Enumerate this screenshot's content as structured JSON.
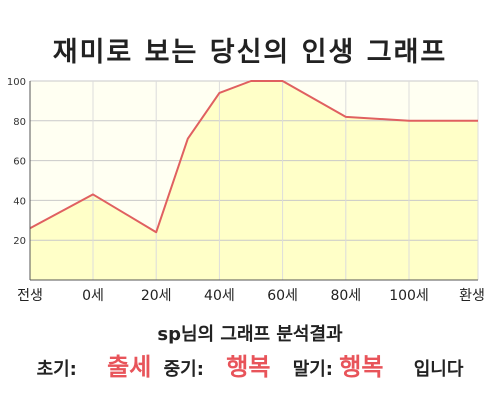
{
  "title": "재미로 보는 당신의 인생 그래프",
  "chart_data": {
    "type": "area",
    "categories": [
      "전생",
      "0세",
      "20세",
      "40세",
      "60세",
      "80세",
      "100세",
      "환생"
    ],
    "y_ticks": [
      20,
      40,
      60,
      80,
      100
    ],
    "ylim": [
      0,
      100
    ],
    "points": [
      {
        "x": "전생",
        "y": 26
      },
      {
        "x": "0세",
        "y": 43
      },
      {
        "x": "20세",
        "y": 24
      },
      {
        "x": "30세",
        "y": 71
      },
      {
        "x": "40세",
        "y": 94
      },
      {
        "x": "50세",
        "y": 100
      },
      {
        "x": "60세",
        "y": 100
      },
      {
        "x": "80세",
        "y": 82
      },
      {
        "x": "100세",
        "y": 80
      },
      {
        "x": "환생",
        "y": 80
      }
    ],
    "grid": true,
    "line_color": "#e06060",
    "fill_color": "#ffffc8",
    "plot_bg_color": "#fffff2"
  },
  "result": {
    "heading": "sp님의 그래프 분석결과",
    "early_label": "초기:",
    "early_value": "출세",
    "mid_label": "중기:",
    "mid_value": "행복",
    "late_label": "말기:",
    "late_value": "행복",
    "suffix": "입니다"
  },
  "colors": {
    "highlight": "#e8545a"
  }
}
